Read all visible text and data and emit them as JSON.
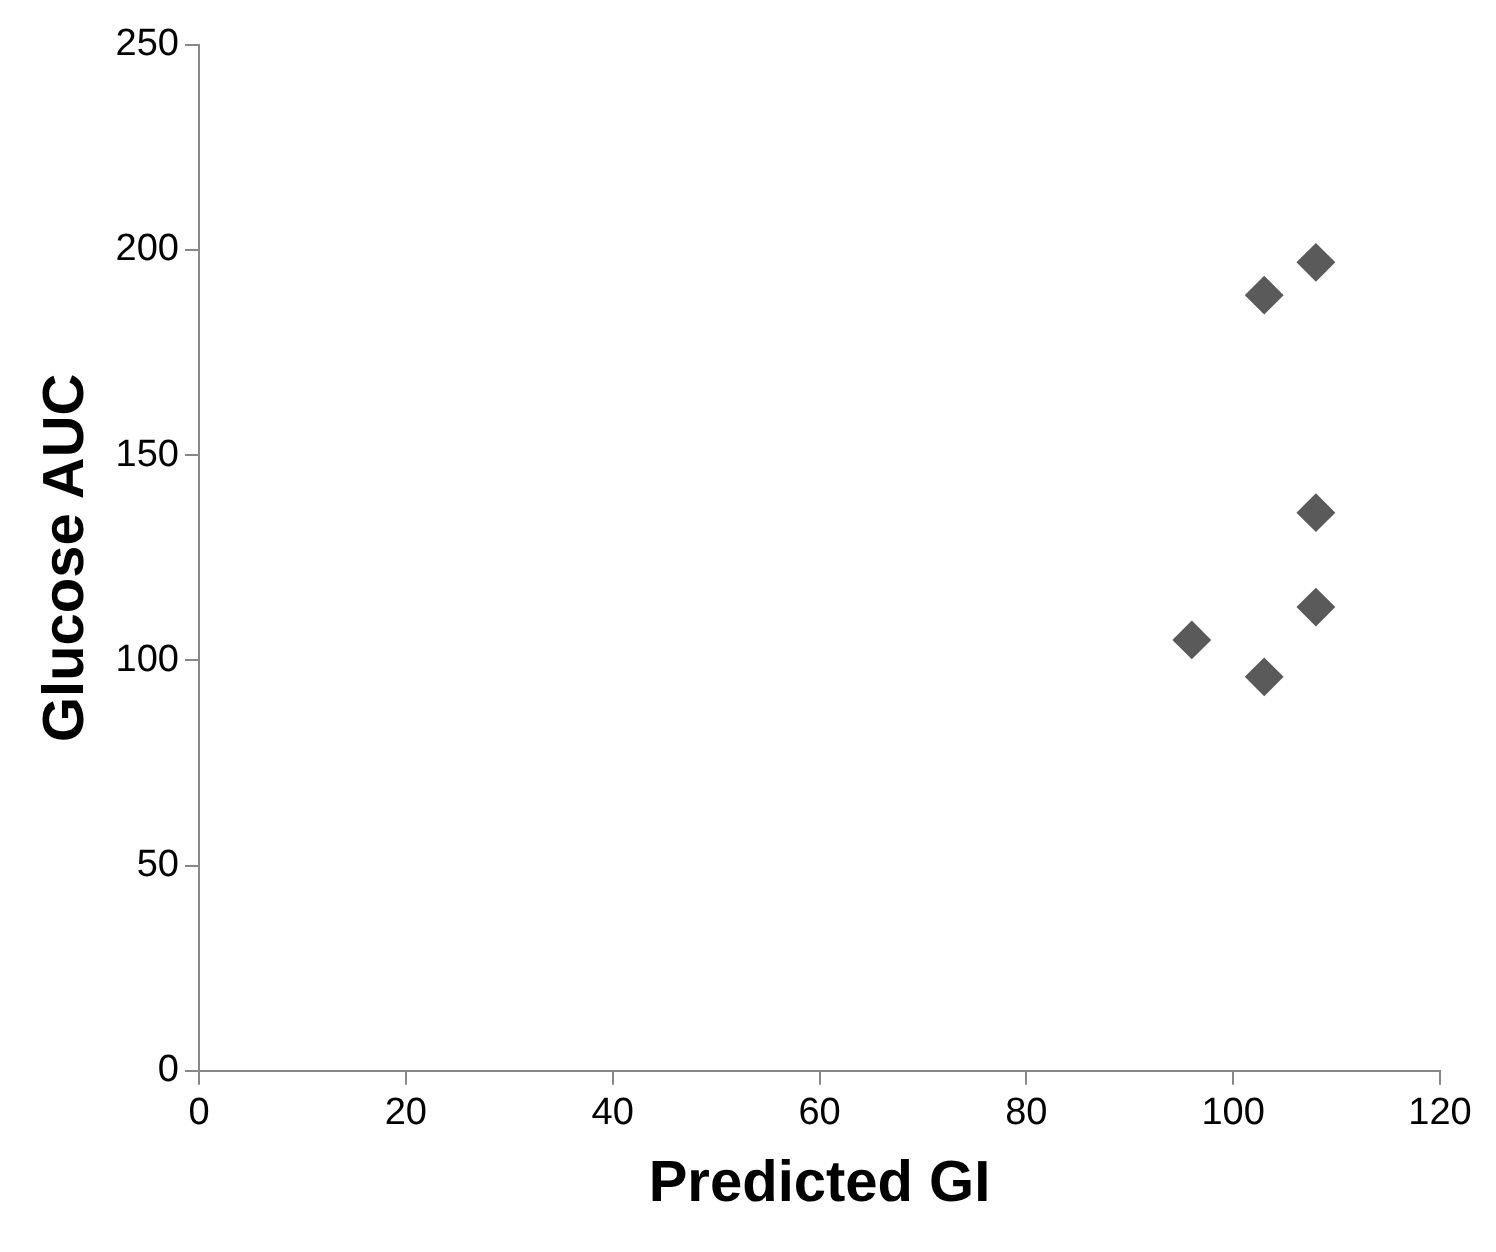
{
  "chart_data": {
    "type": "scatter",
    "xlabel": "Predicted GI",
    "ylabel": "Glucose AUC",
    "x": [
      96,
      103,
      108,
      108,
      103,
      108
    ],
    "values": [
      105,
      96,
      113,
      136,
      189,
      197
    ],
    "color": "#5a5a5a",
    "marker": "diamond",
    "grid": false,
    "legend": false,
    "xlim": [
      0,
      120
    ],
    "xticks": [
      0,
      20,
      40,
      60,
      80,
      100,
      120
    ],
    "ylim": [
      0,
      250
    ],
    "yticks": [
      0,
      50,
      100,
      150,
      200,
      250
    ]
  }
}
